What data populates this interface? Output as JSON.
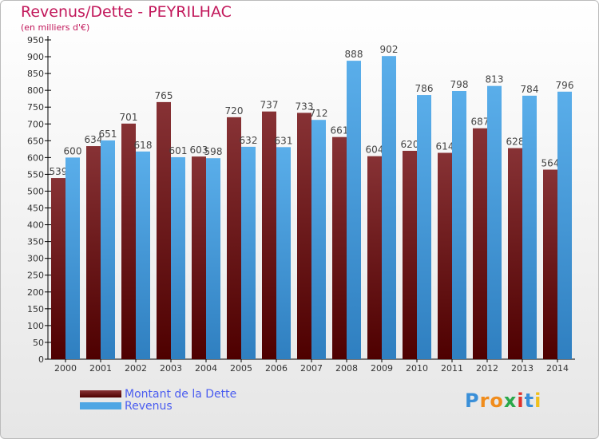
{
  "chart_data": {
    "type": "bar",
    "title": "Revenus/Dette - PEYRILHAC",
    "subtitle": "(en milliers d'€)",
    "categories": [
      "2000",
      "2001",
      "2002",
      "2003",
      "2004",
      "2005",
      "2006",
      "2007",
      "2008",
      "2009",
      "2010",
      "2011",
      "2012",
      "2013",
      "2014"
    ],
    "series": [
      {
        "name": "Montant de la Dette",
        "color": "#7a1f22",
        "values": [
          539,
          634,
          701,
          765,
          603,
          720,
          737,
          733,
          661,
          604,
          620,
          614,
          687,
          628,
          564
        ]
      },
      {
        "name": "Revenus",
        "color": "#4ea6e4",
        "values": [
          600,
          651,
          618,
          601,
          598,
          632,
          631,
          712,
          888,
          902,
          786,
          798,
          813,
          784,
          796
        ]
      }
    ],
    "ylim": [
      0,
      950
    ],
    "yticks": [
      0,
      50,
      100,
      150,
      200,
      250,
      300,
      350,
      400,
      450,
      500,
      550,
      600,
      650,
      700,
      750,
      800,
      850,
      900,
      950
    ],
    "grid": false,
    "legend": "bottom-left"
  },
  "logo": {
    "text": "Proxiti"
  }
}
